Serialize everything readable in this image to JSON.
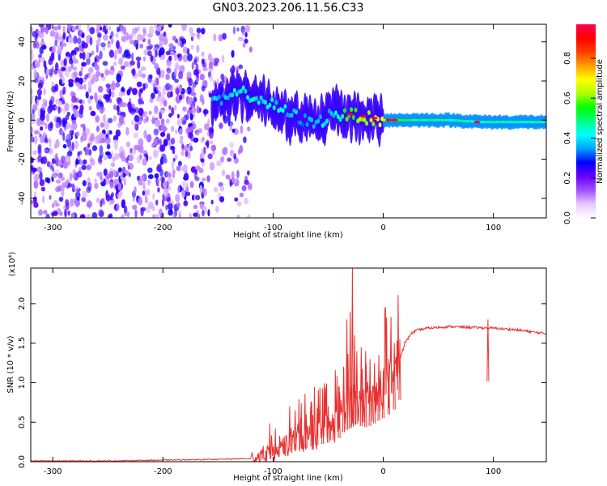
{
  "figure_title": "GN03.2023.206.11.56.C33",
  "chart_data": [
    {
      "type": "heatmap",
      "xlabel": "Height of straight line (km)",
      "ylabel": "Frequency (Hz)",
      "xlim": [
        -320,
        148
      ],
      "ylim": [
        -50,
        49
      ],
      "xticks": [
        -300,
        -200,
        -100,
        0,
        100
      ],
      "yticks": [
        -40,
        -20,
        0,
        20,
        40
      ],
      "colorbar": {
        "label": "Normalized spectral amplitude",
        "range": [
          0,
          0.97
        ],
        "ticks": [
          0.0,
          0.2,
          0.4,
          0.6,
          0.8
        ],
        "tick_labels": [
          "0.0",
          "0.2",
          "0.4",
          "0.6",
          "0.8"
        ],
        "colormap": [
          "#ffffff",
          "#e8c8ff",
          "#a050ff",
          "#6a00ff",
          "#0000ff",
          "#00a0ff",
          "#00ffff",
          "#00ff80",
          "#00ff00",
          "#b0ff00",
          "#ffff00",
          "#ffa000",
          "#ff3c00",
          "#ff0000",
          "#ff0050"
        ]
      },
      "noise_band_x": [
        -320,
        -120
      ],
      "signal_track": {
        "x": [
          -155,
          -140,
          -125,
          -110,
          -95,
          -80,
          -65,
          -55,
          -45,
          -35,
          -25,
          -15,
          0,
          15,
          30,
          60,
          90,
          120,
          148
        ],
        "y": [
          8,
          12,
          14,
          10,
          6,
          2,
          -2,
          0,
          4,
          2,
          3,
          1,
          0,
          0,
          0,
          0,
          -1,
          -1,
          -1
        ],
        "amplitude": [
          0.3,
          0.35,
          0.38,
          0.36,
          0.34,
          0.32,
          0.3,
          0.33,
          0.34,
          0.5,
          0.55,
          0.6,
          0.65,
          0.55,
          0.5,
          0.48,
          0.48,
          0.47,
          0.46
        ]
      },
      "grid": false
    },
    {
      "type": "line",
      "xlabel": "Height of straight line (km)",
      "ylabel": "SNR (10 * v/v)",
      "multiplier_label": "(x10⁴)",
      "xlim": [
        -320,
        148
      ],
      "ylim": [
        0,
        2.45
      ],
      "xticks": [
        -300,
        -200,
        -100,
        0,
        100
      ],
      "yticks": [
        0.0,
        0.5,
        1.0,
        1.5,
        2.0
      ],
      "ytick_labels": [
        "0.0",
        "0.5",
        "1.0",
        "1.5",
        "2.0"
      ],
      "series": [
        {
          "color": "#e83030",
          "x": [
            -320,
            -250,
            -200,
            -150,
            -120,
            -110,
            -100,
            -90,
            -80,
            -70,
            -60,
            -50,
            -40,
            -35,
            -30,
            -28,
            -25,
            -20,
            -15,
            -10,
            -5,
            0,
            5,
            10,
            15,
            20,
            25,
            30,
            40,
            60,
            80,
            100,
            120,
            148
          ],
          "y": [
            0.01,
            0.01,
            0.02,
            0.03,
            0.04,
            0.08,
            0.12,
            0.18,
            0.25,
            0.3,
            0.35,
            0.4,
            0.5,
            0.65,
            0.7,
            2.3,
            0.8,
            0.75,
            0.72,
            0.78,
            0.85,
            0.92,
            1.0,
            1.1,
            1.3,
            1.5,
            1.62,
            1.66,
            1.69,
            1.71,
            1.7,
            1.69,
            1.67,
            1.62
          ],
          "peaks": [
            {
              "x": -100,
              "y": 0.18
            },
            {
              "x": -90,
              "y": 0.32
            },
            {
              "x": -85,
              "y": 0.55
            },
            {
              "x": -80,
              "y": 0.65
            },
            {
              "x": -75,
              "y": 0.55
            },
            {
              "x": -70,
              "y": 0.6
            },
            {
              "x": -65,
              "y": 0.75
            },
            {
              "x": -60,
              "y": 0.68
            },
            {
              "x": -55,
              "y": 0.6
            },
            {
              "x": -50,
              "y": 0.7
            },
            {
              "x": -45,
              "y": 0.55
            },
            {
              "x": -40,
              "y": 0.95
            },
            {
              "x": -36,
              "y": 1.2
            },
            {
              "x": -33,
              "y": 1.8
            },
            {
              "x": -30,
              "y": 1.9
            },
            {
              "x": -28,
              "y": 2.45
            },
            {
              "x": -26,
              "y": 1.6
            },
            {
              "x": -24,
              "y": 1.4
            },
            {
              "x": -20,
              "y": 1.45
            },
            {
              "x": -16,
              "y": 1.4
            },
            {
              "x": -12,
              "y": 1.3
            },
            {
              "x": -8,
              "y": 1.25
            },
            {
              "x": -4,
              "y": 1.35
            },
            {
              "x": 0,
              "y": 1.15
            },
            {
              "x": 5,
              "y": 1.3
            },
            {
              "x": 10,
              "y": 1.5
            },
            {
              "x": 15,
              "y": 1.55
            },
            {
              "x": 95,
              "y": 1.8
            }
          ]
        }
      ],
      "grid": false
    }
  ]
}
